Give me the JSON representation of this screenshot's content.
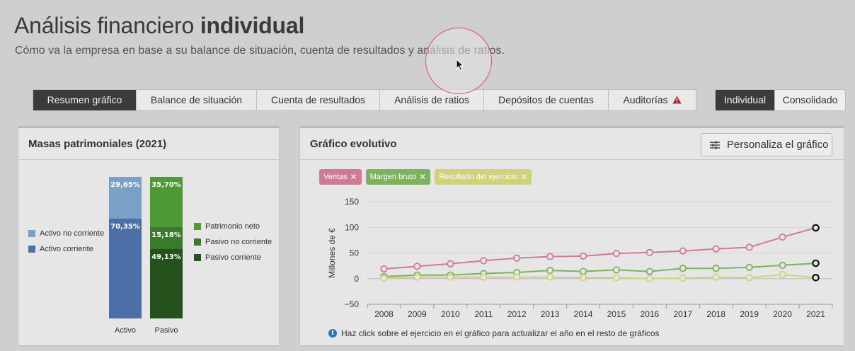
{
  "header": {
    "title_light": "Análisis financiero",
    "title_bold": "individual",
    "subtitle": "Cómo va la empresa en base a su balance de situación, cuenta de resultados y análisis de ratios."
  },
  "tabs": [
    {
      "label": "Resumen gráfico",
      "active": true
    },
    {
      "label": "Balance de situación",
      "active": false
    },
    {
      "label": "Cuenta de resultados",
      "active": false
    },
    {
      "label": "Análisis de ratios",
      "active": false
    },
    {
      "label": "Depósitos de cuentas",
      "active": false
    },
    {
      "label": "Auditorías",
      "active": false,
      "icon": "warning-icon"
    }
  ],
  "mode": {
    "individual": "Individual",
    "consolidado": "Consolidado",
    "selected": "Individual"
  },
  "masas": {
    "title": "Masas patrimoniales (2021)",
    "activo_label": "Activo",
    "pasivo_label": "Pasivo",
    "activo": [
      {
        "name": "Activo no corriente",
        "value": 29.65,
        "text": "29,65%",
        "color": "#7aa0c8"
      },
      {
        "name": "Activo corriente",
        "value": 70.35,
        "text": "70,35%",
        "color": "#4c6fa8"
      }
    ],
    "pasivo": [
      {
        "name": "Patrimonio neto",
        "value": 35.7,
        "text": "35,70%",
        "color": "#4d9a35"
      },
      {
        "name": "Pasivo no corriente",
        "value": 15.18,
        "text": "15,18%",
        "color": "#3c7a2b"
      },
      {
        "name": "Pasivo corriente",
        "value": 49.13,
        "text": "49,13%",
        "color": "#24511c"
      }
    ]
  },
  "evolutivo": {
    "title": "Gráfico evolutivo",
    "customize_label": "Personaliza el gráfico",
    "info_text": "Haz click sobre el ejercicio en el gráfico para actualizar el año en el resto de gráficos",
    "filters": [
      {
        "label": "Ventas",
        "color": "#d17a95"
      },
      {
        "label": "Margen bruto",
        "color": "#7cb35e"
      },
      {
        "label": "Resultado del ejercicio",
        "color": "#cfd27a"
      }
    ]
  },
  "chart_data": {
    "type": "line",
    "x": [
      "2008",
      "2009",
      "2010",
      "2011",
      "2012",
      "2013",
      "2014",
      "2015",
      "2016",
      "2017",
      "2018",
      "2019",
      "2020",
      "2021"
    ],
    "ylabel": "Millones de €",
    "ylim": [
      -50,
      150
    ],
    "yticks": [
      150,
      100,
      50,
      0,
      -50
    ],
    "series": [
      {
        "name": "Ventas",
        "color": "#d17a95",
        "values": [
          19,
          24,
          29,
          35,
          40,
          43,
          44,
          49,
          51,
          54,
          58,
          61,
          81,
          99
        ]
      },
      {
        "name": "Margen bruto",
        "color": "#7cb35e",
        "values": [
          4,
          7,
          7,
          10,
          12,
          16,
          14,
          17,
          14,
          20,
          20,
          22,
          26,
          30
        ]
      },
      {
        "name": "Resultado del ejercicio",
        "color": "#cfd27a",
        "values": [
          1,
          3,
          3,
          3,
          3,
          3,
          2,
          2,
          0,
          1,
          3,
          2,
          8,
          2
        ]
      }
    ],
    "highlighted_x": "2021",
    "grid": "horizontal"
  }
}
